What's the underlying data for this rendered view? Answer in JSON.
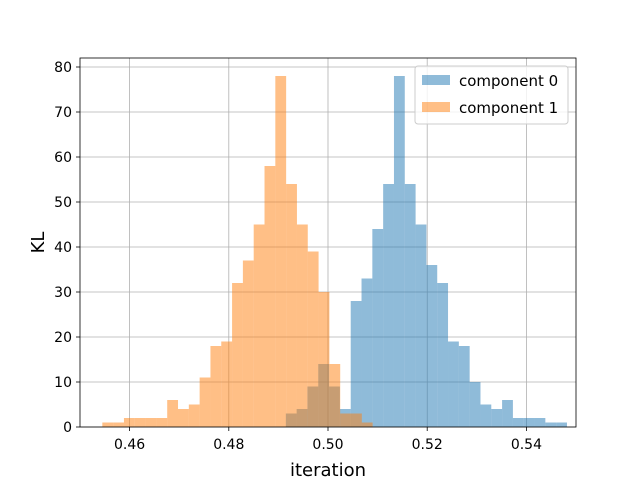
{
  "chart_data": {
    "type": "bar",
    "xlabel": "iteration",
    "ylabel": "KL",
    "xlim": [
      0.45,
      0.55
    ],
    "ylim": [
      0,
      82
    ],
    "xticks": [
      0.46,
      0.48,
      0.5,
      0.52,
      0.54
    ],
    "xtick_labels": [
      "0.46",
      "0.48",
      "0.50",
      "0.52",
      "0.54"
    ],
    "yticks": [
      0,
      10,
      20,
      30,
      40,
      50,
      60,
      70,
      80
    ],
    "ytick_labels": [
      "0",
      "10",
      "20",
      "30",
      "40",
      "50",
      "60",
      "70",
      "80"
    ],
    "grid": true,
    "legend_position": "top-right",
    "series": [
      {
        "name": "component 0",
        "color": "#1f77b4",
        "alpha": 0.5,
        "bins_start": 0.4915,
        "bin_width": 0.00218,
        "counts": [
          3,
          4,
          9,
          14,
          9,
          4,
          28,
          33,
          44,
          54,
          78,
          54,
          45,
          36,
          32,
          19,
          18,
          10,
          5,
          4,
          6,
          2,
          2,
          2,
          1,
          1
        ]
      },
      {
        "name": "component 1",
        "color": "#ff7f0e",
        "alpha": 0.5,
        "bins_start": 0.4545,
        "bin_width": 0.00218,
        "counts": [
          1,
          1,
          2,
          2,
          2,
          2,
          6,
          4,
          5,
          11,
          18,
          19,
          32,
          37,
          45,
          58,
          78,
          54,
          45,
          39,
          30,
          14,
          3,
          3,
          1
        ]
      }
    ]
  }
}
